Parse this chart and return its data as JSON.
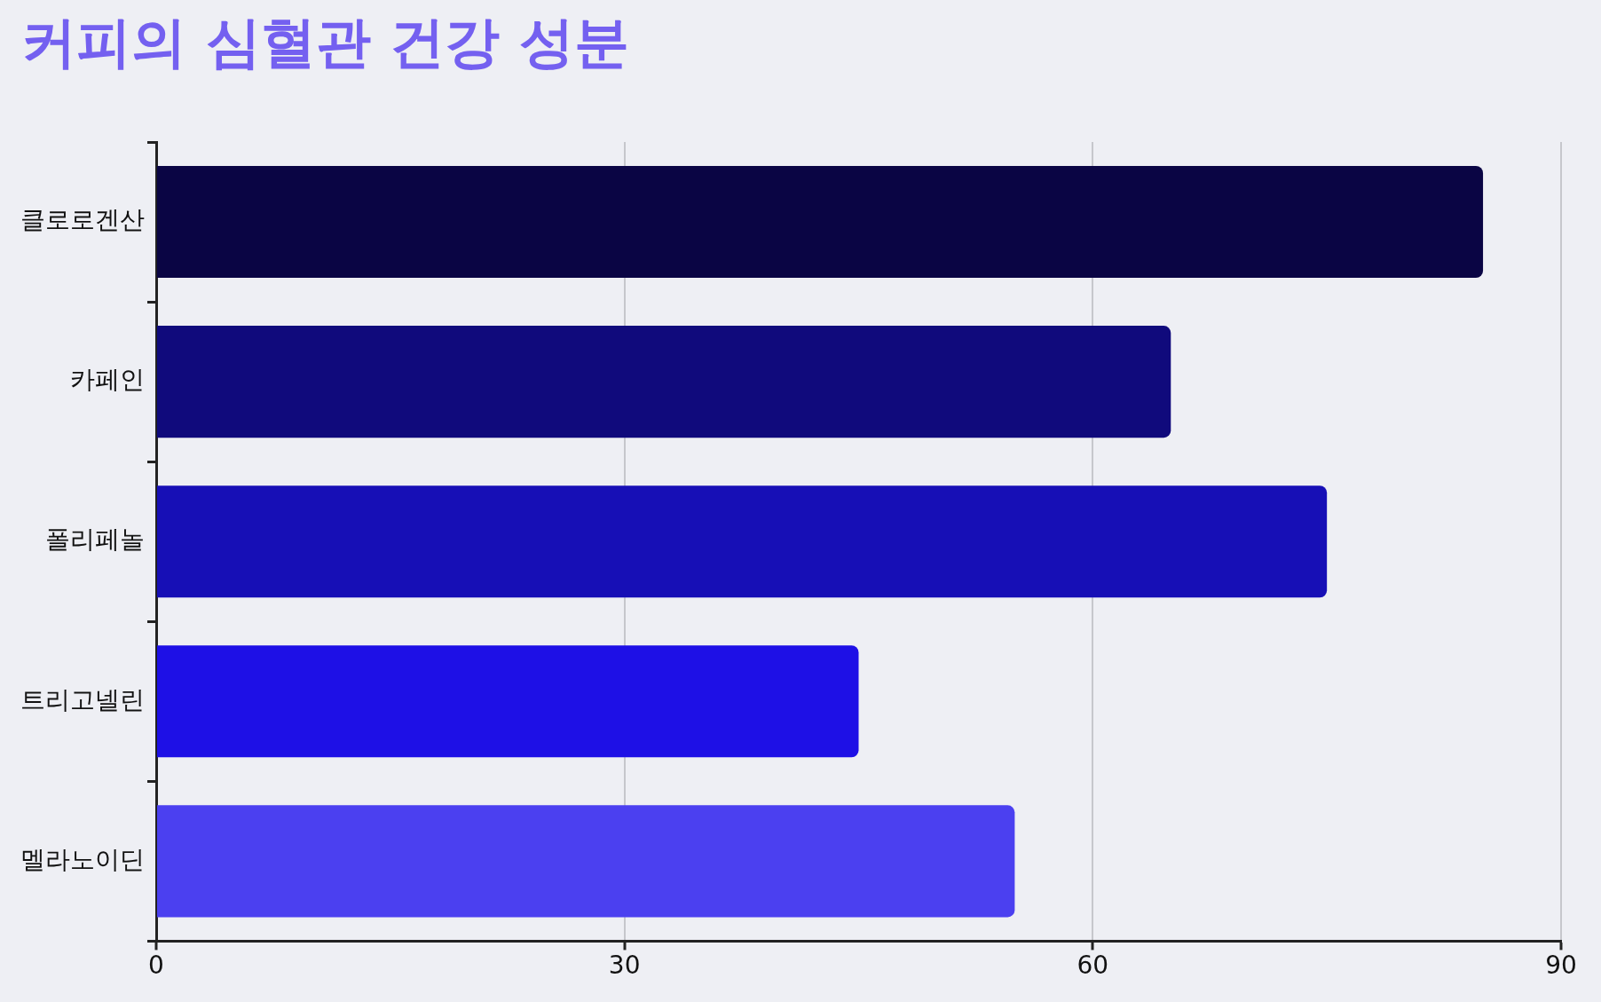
{
  "chart_data": {
    "type": "bar",
    "orientation": "horizontal",
    "title": "커피의 심혈관 건강 성분",
    "categories": [
      "클로로겐산",
      "카페인",
      "폴리페놀",
      "트리고넬린",
      "멜라노이딘"
    ],
    "values": [
      85,
      65,
      75,
      45,
      55
    ],
    "colors": [
      "#0a0544",
      "#100a7c",
      "#170fb6",
      "#1e10e6",
      "#4b40f0"
    ],
    "xlim": [
      0,
      90
    ],
    "xticks": [
      0,
      30,
      60,
      90
    ],
    "grid": "x",
    "legend": false
  }
}
